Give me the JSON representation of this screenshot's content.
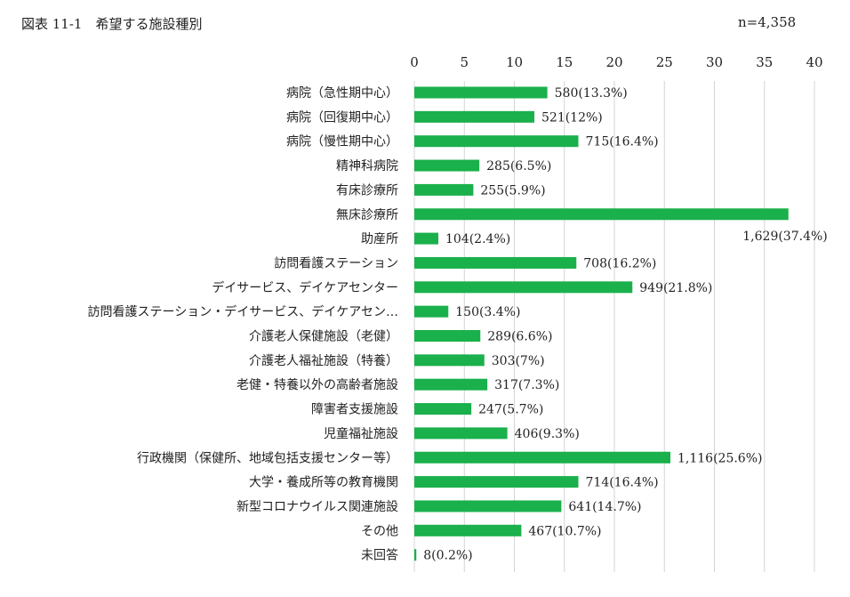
{
  "chart_data": {
    "type": "bar",
    "orientation": "horizontal",
    "title": "図表 11-1　希望する施設種別",
    "sample_note": "n=4,358",
    "xlim": [
      0,
      40
    ],
    "x_ticks": [
      "0",
      "5",
      "10",
      "15",
      "20",
      "25",
      "30",
      "35",
      "40"
    ],
    "grid": true,
    "bar_color": "#1ab04c",
    "categories": [
      "病院（急性期中心）",
      "病院（回復期中心）",
      "病院（慢性期中心）",
      "精神科病院",
      "有床診療所",
      "無床診療所",
      "助産所",
      "訪問看護ステーション",
      "デイサービス、デイケアセンター",
      "訪問看護ステーション・デイサービス、デイケアセン…",
      "介護老人保健施設（老健）",
      "介護老人福祉施設（特養）",
      "老健・特養以外の高齢者施設",
      "障害者支援施設",
      "児童福祉施設",
      "行政機関（保健所、地域包括支援センター等）",
      "大学・養成所等の教育機関",
      "新型コロナウイルス関連施設",
      "その他",
      "未回答"
    ],
    "values": [
      13.3,
      12,
      16.4,
      6.5,
      5.9,
      37.4,
      2.4,
      16.2,
      21.8,
      3.4,
      6.6,
      7,
      7.3,
      5.7,
      9.3,
      25.6,
      16.4,
      14.7,
      10.7,
      0.2
    ],
    "data_labels": [
      "580(13.3%)",
      "521(12%)",
      "715(16.4%)",
      "285(6.5%)",
      "255(5.9%)",
      "1,629(37.4%)",
      "104(2.4%)",
      "708(16.2%)",
      "949(21.8%)",
      "150(3.4%)",
      "289(6.6%)",
      "303(7%)",
      "317(7.3%)",
      "247(5.7%)",
      "406(9.3%)",
      "1,116(25.6%)",
      "714(16.4%)",
      "641(14.7%)",
      "467(10.7%)",
      "8(0.2%)"
    ]
  }
}
